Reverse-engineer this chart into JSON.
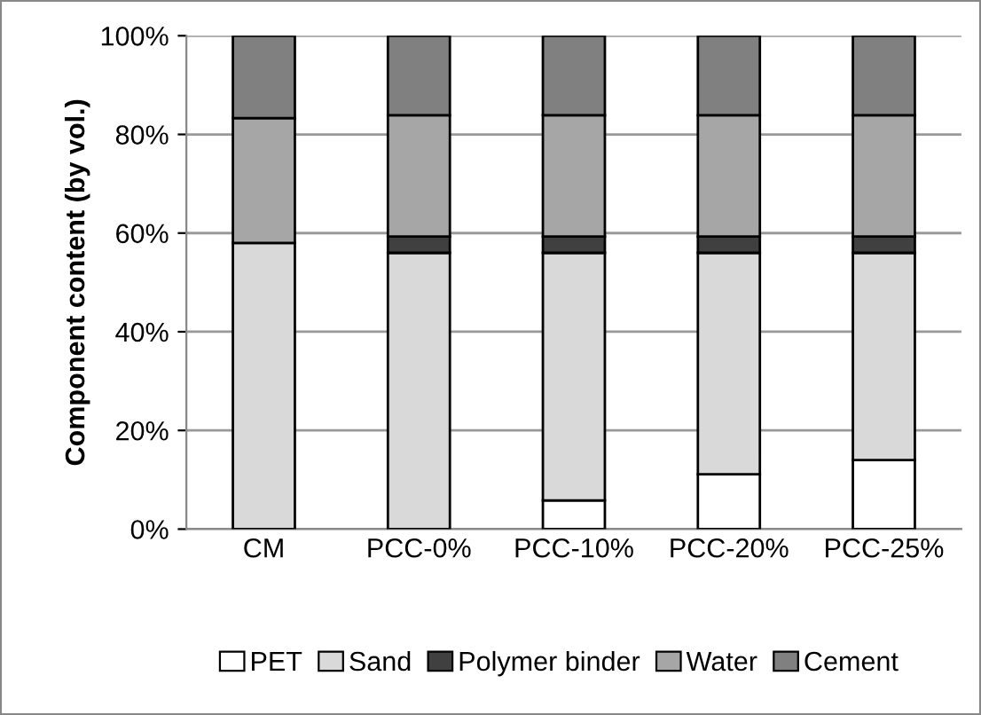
{
  "chart_data": {
    "type": "bar",
    "stacked": true,
    "ylabel": "Component content (by vol.)",
    "categories": [
      "CM",
      "PCC-0%",
      "PCC-10%",
      "PCC-20%",
      "PCC-25%"
    ],
    "series": [
      {
        "name": "PET",
        "color": "#ffffff",
        "values": [
          null,
          null,
          5.8,
          11.1,
          14.0
        ]
      },
      {
        "name": "Sand",
        "color": "#d9d9d9",
        "values": [
          58.0,
          56.0,
          50.2,
          44.9,
          42.0
        ]
      },
      {
        "name": "Polymer binder",
        "color": "#404040",
        "values": [
          null,
          3.3,
          3.3,
          3.3,
          3.3
        ]
      },
      {
        "name": "Water",
        "color": "#a6a6a6",
        "values": [
          25.3,
          24.6,
          24.6,
          24.6,
          24.6
        ]
      },
      {
        "name": "Cement",
        "color": "#808080",
        "values": [
          16.7,
          16.1,
          16.1,
          16.1,
          16.1
        ]
      }
    ],
    "ylim": [
      0,
      100
    ],
    "yticks": [
      {
        "value": 0,
        "label": "0%"
      },
      {
        "value": 20,
        "label": "20%"
      },
      {
        "value": 40,
        "label": "40%"
      },
      {
        "value": 60,
        "label": "60%"
      },
      {
        "value": 80,
        "label": "80%"
      },
      {
        "value": 100,
        "label": "100%"
      }
    ],
    "grid": "y",
    "legend": "bottom"
  }
}
